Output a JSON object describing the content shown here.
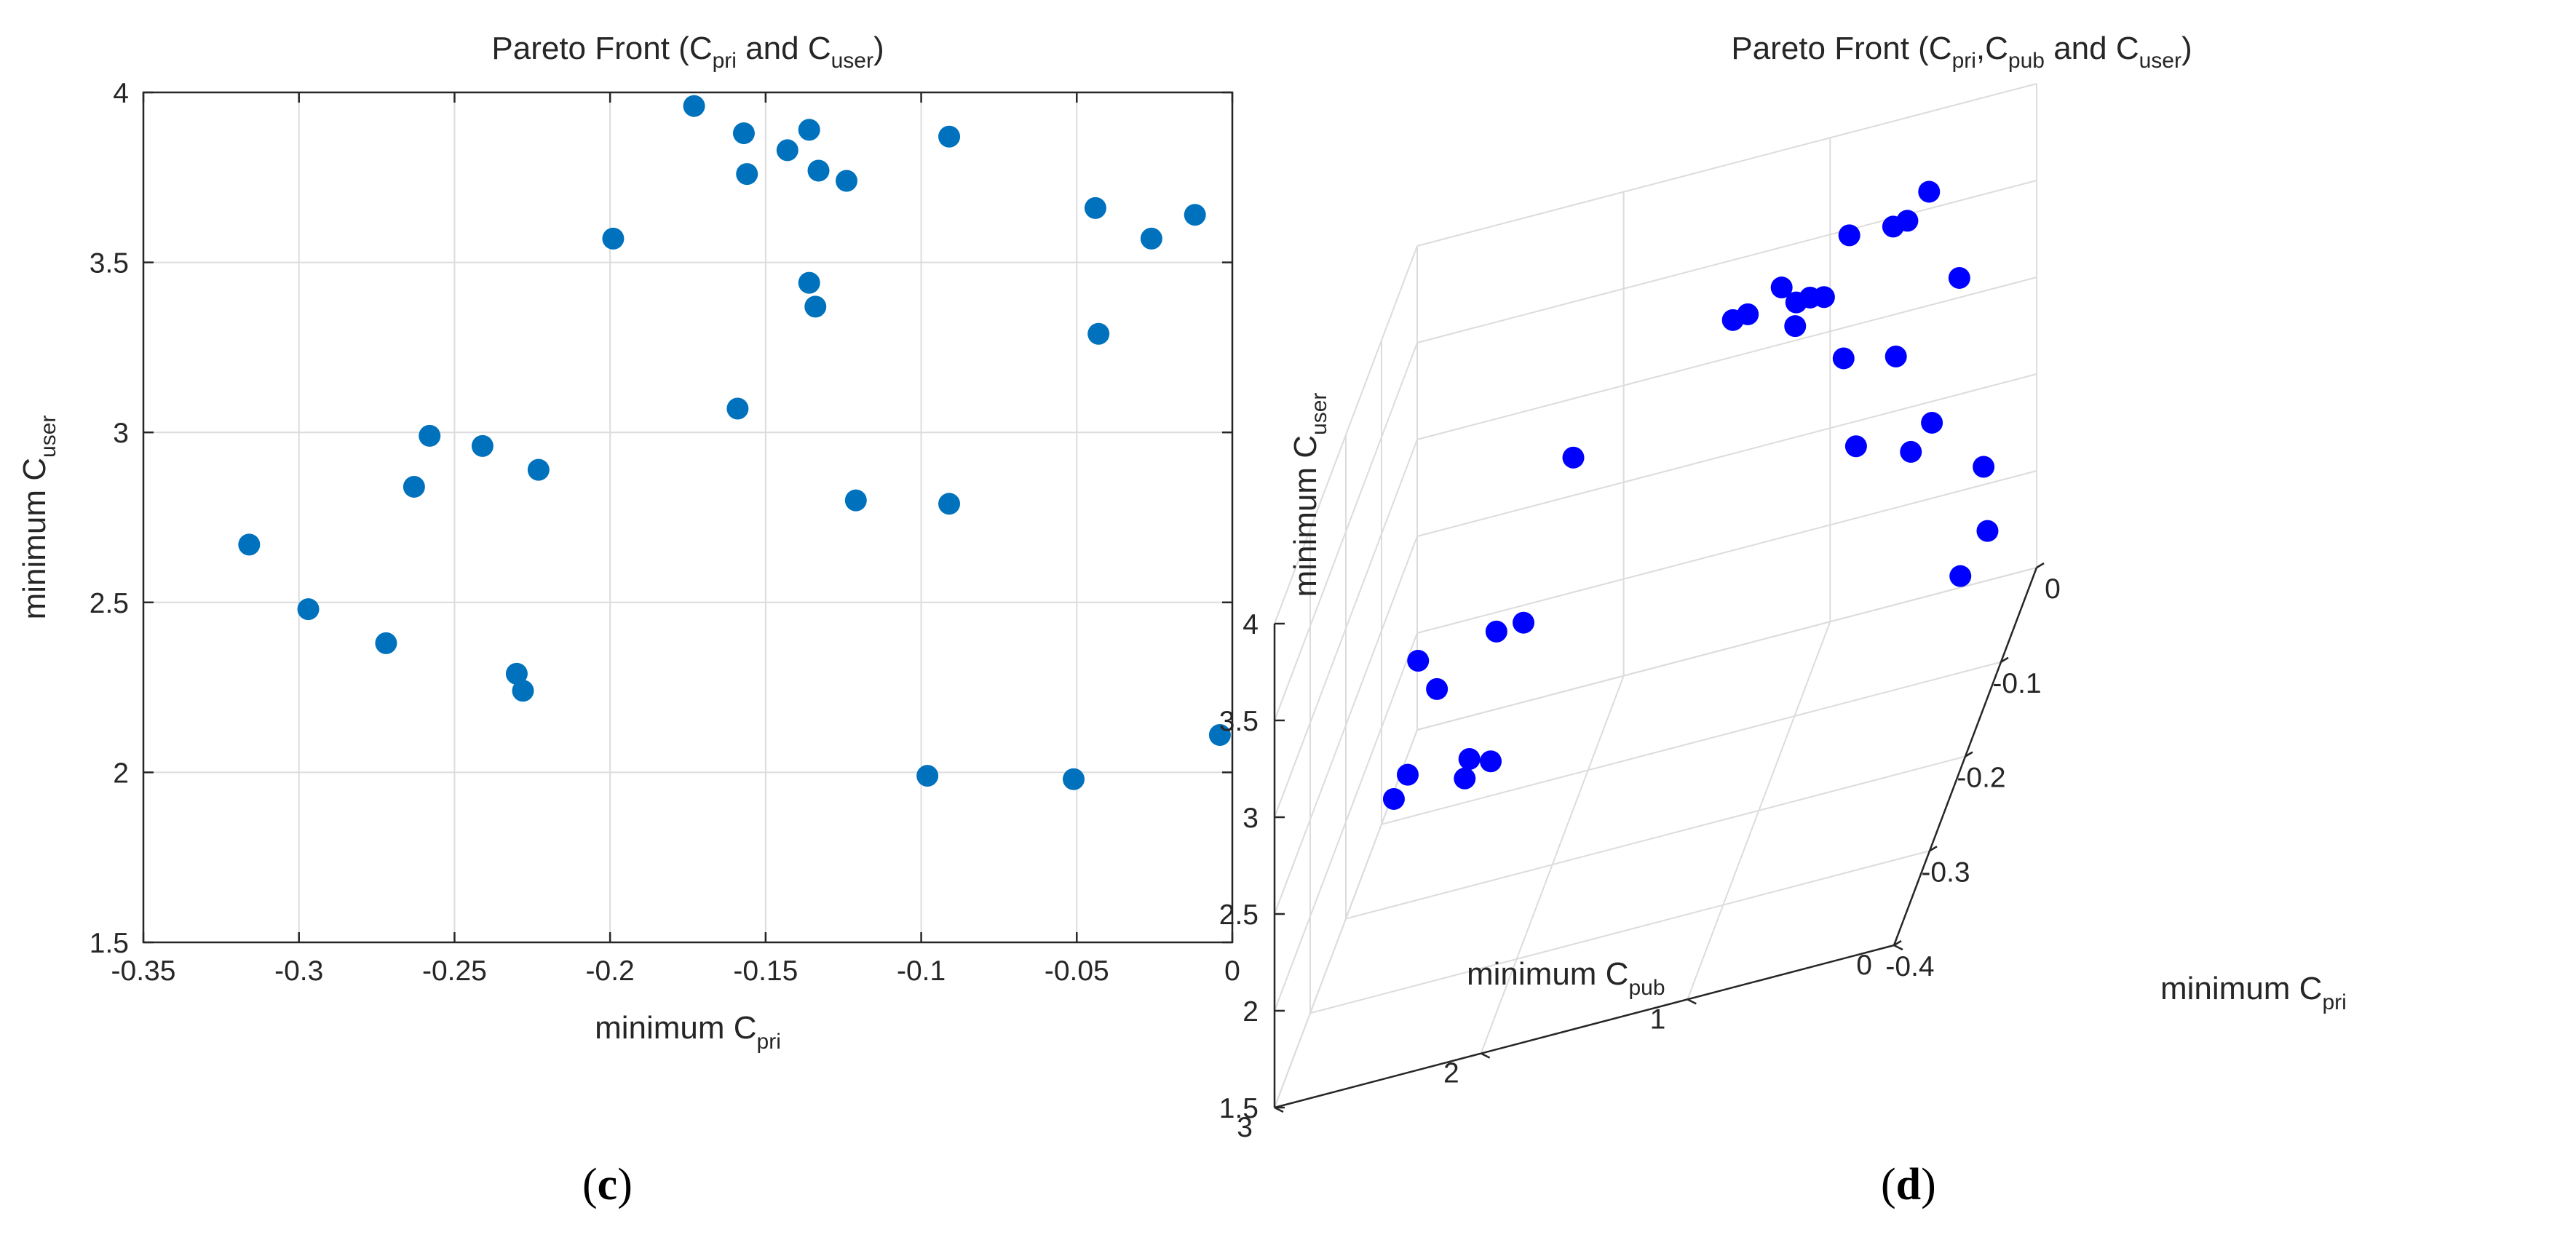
{
  "chart_data": [
    {
      "type": "scatter",
      "title_main": "Pareto Front (C",
      "title_sub1": "pri",
      "title_mid": " and C",
      "title_sub2": "user",
      "title_end": ")",
      "xlabel_main": "minimum C",
      "xlabel_sub": "pri",
      "ylabel_main": "minimum C",
      "ylabel_sub": "user",
      "xlim": [
        -0.35,
        0
      ],
      "ylim": [
        1.5,
        4
      ],
      "xticks": [
        -0.35,
        -0.3,
        -0.25,
        -0.2,
        -0.15,
        -0.1,
        -0.05,
        0
      ],
      "xticklabels": [
        "-0.35",
        "-0.3",
        "-0.25",
        "-0.2",
        "-0.15",
        "-0.1",
        "-0.05",
        "0"
      ],
      "yticks": [
        1.5,
        2,
        2.5,
        3,
        3.5,
        4
      ],
      "yticklabels": [
        "1.5",
        "2",
        "2.5",
        "3",
        "3.5",
        "4"
      ],
      "grid": true,
      "color": "#0072BD",
      "panel_label": "c",
      "points": [
        [
          -0.316,
          2.67
        ],
        [
          -0.297,
          2.48
        ],
        [
          -0.272,
          2.38
        ],
        [
          -0.263,
          2.84
        ],
        [
          -0.258,
          2.99
        ],
        [
          -0.241,
          2.96
        ],
        [
          -0.23,
          2.29
        ],
        [
          -0.228,
          2.24
        ],
        [
          -0.223,
          2.89
        ],
        [
          -0.199,
          3.57
        ],
        [
          -0.173,
          3.96
        ],
        [
          -0.159,
          3.07
        ],
        [
          -0.157,
          3.88
        ],
        [
          -0.156,
          3.76
        ],
        [
          -0.143,
          3.83
        ],
        [
          -0.136,
          3.89
        ],
        [
          -0.136,
          3.44
        ],
        [
          -0.134,
          3.37
        ],
        [
          -0.133,
          3.77
        ],
        [
          -0.124,
          3.74
        ],
        [
          -0.121,
          2.8
        ],
        [
          -0.098,
          1.99
        ],
        [
          -0.091,
          3.87
        ],
        [
          -0.091,
          2.79
        ],
        [
          -0.051,
          1.98
        ],
        [
          -0.044,
          3.66
        ],
        [
          -0.043,
          3.29
        ],
        [
          -0.026,
          3.57
        ],
        [
          -0.012,
          3.64
        ],
        [
          -0.004,
          2.11
        ]
      ]
    },
    {
      "type": "scatter3d",
      "title_main": "Pareto Front (C",
      "title_sub1": "pri",
      "title_mid": ",C",
      "title_sub2": "pub",
      "title_mid2": " and C",
      "title_sub3": "user",
      "title_end": ")",
      "xlabel_main": "minimum C",
      "xlabel_sub": "pri",
      "ylabel_main": "minimum C",
      "ylabel_sub": "pub",
      "zlabel_main": "minimum C",
      "zlabel_sub": "user",
      "xlim": [
        -0.4,
        0
      ],
      "ylim": [
        0,
        3
      ],
      "zlim": [
        1.5,
        4
      ],
      "xticks": [
        -0.4,
        -0.3,
        -0.2,
        -0.1,
        0
      ],
      "xticklabels": [
        "-0.4",
        "-0.3",
        "-0.2",
        "-0.1",
        "0"
      ],
      "yticks": [
        0,
        1,
        2,
        3
      ],
      "yticklabels": [
        "0",
        "1",
        "2",
        "3"
      ],
      "zticks": [
        1.5,
        2,
        2.5,
        3,
        3.5,
        4
      ],
      "zticklabels": [
        "1.5",
        "2",
        "2.5",
        "3",
        "3.5",
        "4"
      ],
      "grid": true,
      "color": "#0000FF",
      "panel_label": "d",
      "points": [
        [
          -0.316,
          2.5,
          2.67
        ],
        [
          -0.297,
          2.6,
          2.48
        ],
        [
          -0.272,
          2.3,
          2.38
        ],
        [
          -0.263,
          2.45,
          2.84
        ],
        [
          -0.258,
          2.55,
          2.99
        ],
        [
          -0.241,
          2.2,
          2.96
        ],
        [
          -0.23,
          2.35,
          2.29
        ],
        [
          -0.228,
          2.25,
          2.24
        ],
        [
          -0.223,
          2.1,
          2.89
        ],
        [
          -0.199,
          1.9,
          3.57
        ],
        [
          -0.173,
          1.1,
          3.96
        ],
        [
          -0.159,
          0.6,
          3.07
        ],
        [
          -0.157,
          1.2,
          3.88
        ],
        [
          -0.156,
          0.9,
          3.76
        ],
        [
          -0.143,
          0.85,
          3.83
        ],
        [
          -0.136,
          1.0,
          3.89
        ],
        [
          -0.136,
          0.7,
          3.44
        ],
        [
          -0.134,
          0.45,
          3.37
        ],
        [
          -0.133,
          0.8,
          3.77
        ],
        [
          -0.124,
          0.95,
          3.74
        ],
        [
          -0.121,
          0.4,
          2.8
        ],
        [
          -0.098,
          0.2,
          1.99
        ],
        [
          -0.091,
          0.75,
          3.87
        ],
        [
          -0.091,
          0.35,
          2.79
        ],
        [
          -0.051,
          0.15,
          1.98
        ],
        [
          -0.044,
          0.55,
          3.66
        ],
        [
          -0.043,
          0.3,
          3.29
        ],
        [
          -0.026,
          0.65,
          3.57
        ],
        [
          -0.012,
          0.5,
          3.64
        ],
        [
          -0.004,
          0.25,
          2.11
        ]
      ]
    }
  ]
}
